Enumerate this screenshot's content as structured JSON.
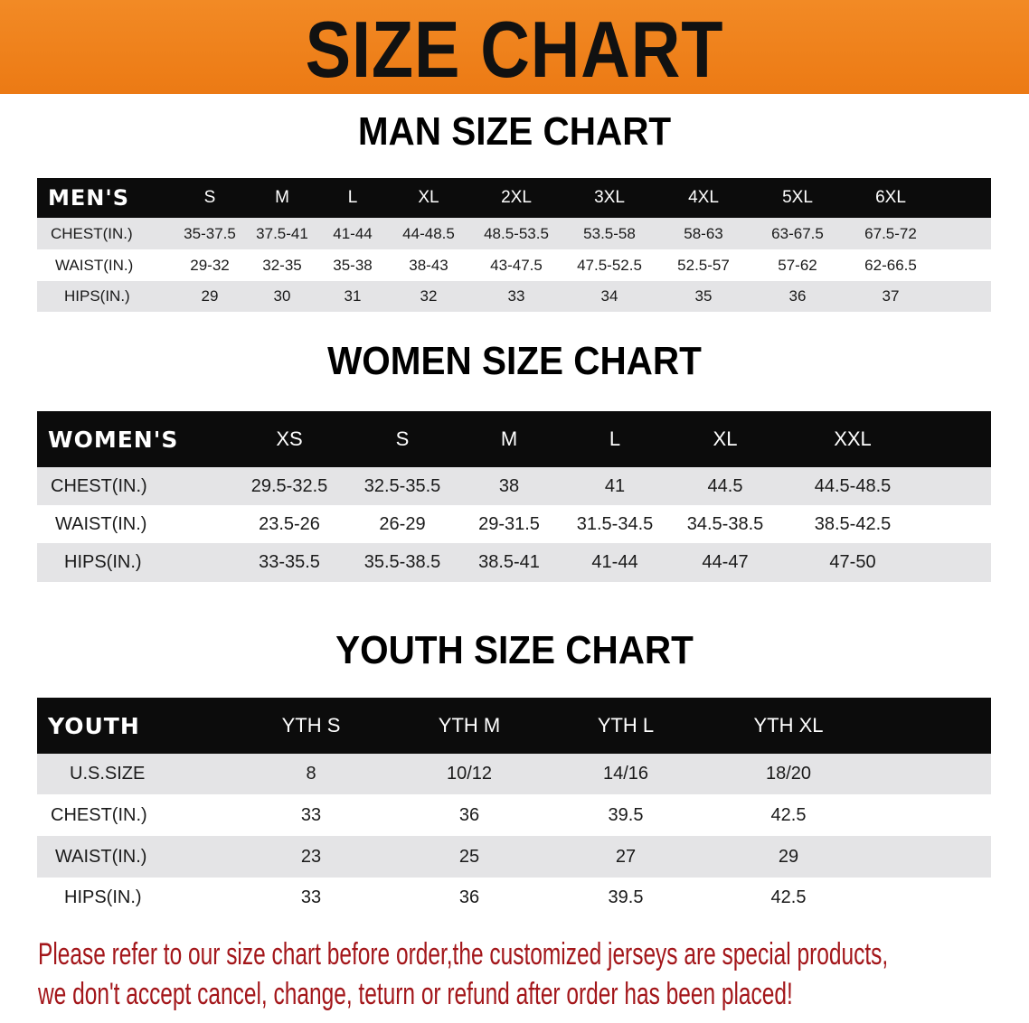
{
  "title": "SIZE CHART",
  "colors": {
    "banner": "#ef801b",
    "header_row": "#0c0c0c",
    "stripe": "#e4e4e6",
    "note": "#a3161a"
  },
  "men": {
    "title": "MAN SIZE CHART",
    "header": [
      "MEN'S",
      "S",
      "M",
      "L",
      "XL",
      "2XL",
      "3XL",
      "4XL",
      "5XL",
      "6XL"
    ],
    "rows": [
      [
        "CHEST(IN.)",
        "35-37.5",
        "37.5-41",
        "41-44",
        "44-48.5",
        "48.5-53.5",
        "53.5-58",
        "58-63",
        "63-67.5",
        "67.5-72"
      ],
      [
        "WAIST(IN.)",
        "29-32",
        "32-35",
        "35-38",
        "38-43",
        "43-47.5",
        "47.5-52.5",
        "52.5-57",
        "57-62",
        "62-66.5"
      ],
      [
        "HIPS(IN.)",
        "29",
        "30",
        "31",
        "32",
        "33",
        "34",
        "35",
        "36",
        "37"
      ]
    ]
  },
  "women": {
    "title": "WOMEN SIZE CHART",
    "header": [
      "WOMEN'S",
      "XS",
      "S",
      "M",
      "L",
      "XL",
      "XXL"
    ],
    "rows": [
      [
        "CHEST(IN.)",
        "29.5-32.5",
        "32.5-35.5",
        "38",
        "41",
        "44.5",
        "44.5-48.5"
      ],
      [
        "WAIST(IN.)",
        "23.5-26",
        "26-29",
        "29-31.5",
        "31.5-34.5",
        "34.5-38.5",
        "38.5-42.5"
      ],
      [
        "HIPS(IN.)",
        "33-35.5",
        "35.5-38.5",
        "38.5-41",
        "41-44",
        "44-47",
        "47-50"
      ]
    ]
  },
  "youth": {
    "title": "YOUTH SIZE CHART",
    "header": [
      "YOUTH",
      "YTH S",
      "YTH M",
      "YTH L",
      "YTH XL"
    ],
    "rows": [
      [
        "U.S.SIZE",
        "8",
        "10/12",
        "14/16",
        "18/20"
      ],
      [
        "CHEST(IN.)",
        "33",
        "36",
        "39.5",
        "42.5"
      ],
      [
        "WAIST(IN.)",
        "23",
        "25",
        "27",
        "29"
      ],
      [
        "HIPS(IN.)",
        "33",
        "36",
        "39.5",
        "42.5"
      ]
    ]
  },
  "note": {
    "line1": "Please refer to our size chart before order,the customized jerseys are special products,",
    "line2": "we don't accept cancel, change, teturn or refund after order has been placed!"
  }
}
